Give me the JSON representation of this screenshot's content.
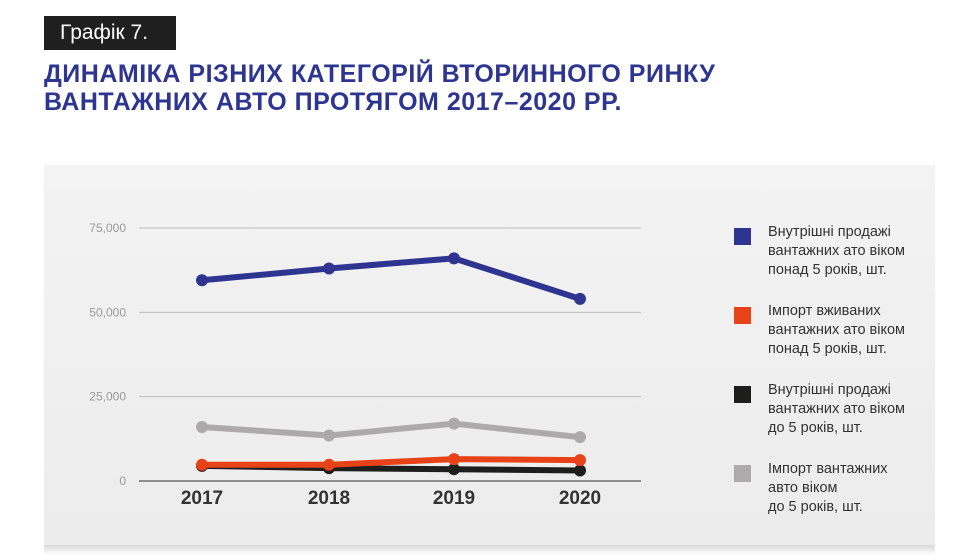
{
  "header": {
    "tag": "Графік 7.",
    "title_line1": "ДИНАМІКА РІЗНИХ КАТЕГОРІЙ ВТОРИННОГО РИНКУ",
    "title_line2": "ВАНТАЖНИХ АВТО ПРОТЯГОМ 2017–2020 РР."
  },
  "chart_data": {
    "type": "line",
    "categories": [
      "2017",
      "2018",
      "2019",
      "2020"
    ],
    "ylim": [
      0,
      75000
    ],
    "yticks": [
      0,
      25000,
      50000,
      75000
    ],
    "ytick_labels": [
      "0",
      "25,000",
      "50,000",
      "75,000"
    ],
    "grid": true,
    "legend_position": "right",
    "series": [
      {
        "name": "Імпорт вантажних авто віком до 5 років, шт.",
        "color": "#adaaab",
        "values": [
          16000,
          13500,
          17000,
          13000
        ]
      },
      {
        "name": "Внутрішні продажі вантажних ато віком до 5 років, шт.",
        "color": "#1d1d1b",
        "values": [
          4500,
          3800,
          3500,
          3100
        ]
      },
      {
        "name": "Імпорт вживаних вантажних ато віком понад 5 років, шт.",
        "color": "#e84218",
        "values": [
          4800,
          4800,
          6500,
          6200
        ]
      },
      {
        "name": "Внутрішні продажі вантажних ато віком понад 5 років, шт.",
        "color": "#2e3590",
        "values": [
          59500,
          63000,
          66000,
          54000
        ]
      }
    ]
  },
  "legend": [
    {
      "color": "#2e3590",
      "lines": [
        "Внутрішні продажі",
        "вантажних ато віком",
        "понад 5 років, шт."
      ]
    },
    {
      "color": "#e84218",
      "lines": [
        "Імпорт вживаних",
        "вантажних ато віком",
        "понад 5 років, шт."
      ]
    },
    {
      "color": "#1d1d1b",
      "lines": [
        "Внутрішні продажі",
        "вантажних ато віком",
        "до 5 років, шт."
      ]
    },
    {
      "color": "#adaaab",
      "lines": [
        "Імпорт вантажних",
        "авто віком",
        "до 5 років, шт."
      ]
    }
  ]
}
